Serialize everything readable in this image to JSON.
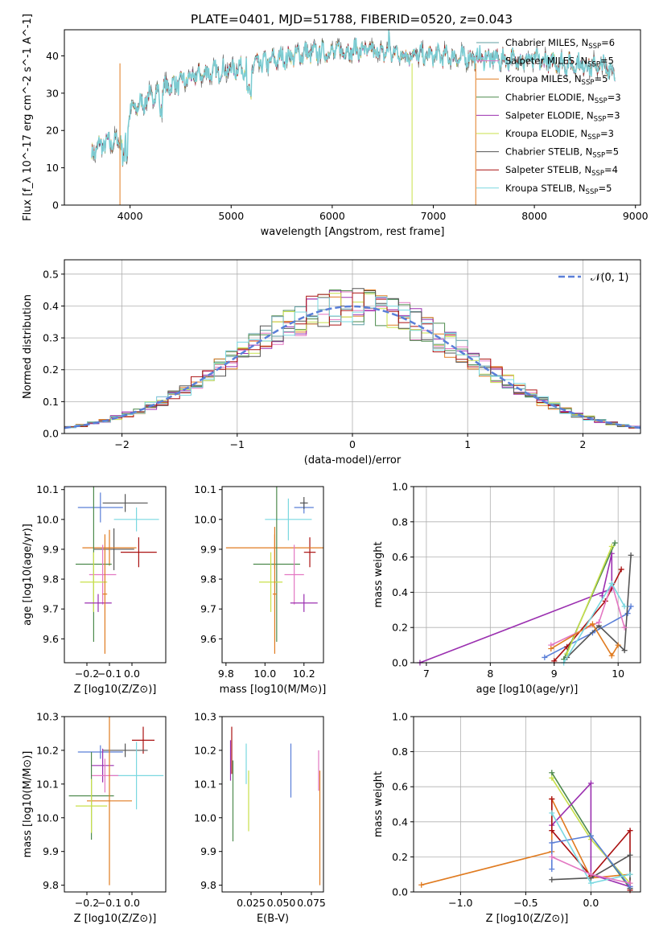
{
  "figure": {
    "title": "PLATE=0401, MJD=51788, FIBERID=0520, z=0.043"
  },
  "colors": {
    "chabrier_miles": "#5f9ea0",
    "salpeter_miles": "#e377c2",
    "kroupa_miles": "#e07b20",
    "chabrier_elodie": "#4d8a4d",
    "salpeter_elodie": "#9b30b0",
    "kroupa_elodie": "#c8e04a",
    "chabrier_stelib": "#555555",
    "salpeter_stelib": "#aa1111",
    "kroupa_stelib": "#7ad8e0",
    "extra_blue": "#5a7fd8"
  },
  "chart_data": [
    {
      "id": "spectrum",
      "type": "line",
      "title": "PLATE=0401, MJD=51788, FIBERID=0520, z=0.043",
      "xlabel": "wavelength [Angstrom, rest frame]",
      "ylabel": "Flux [f_λ 10^-17 erg cm^-2 s^-1 A^-1]",
      "xlim": [
        3350,
        9050
      ],
      "ylim": [
        0,
        47
      ],
      "xticks": [
        4000,
        5000,
        6000,
        7000,
        8000,
        9000
      ],
      "yticks": [
        0,
        10,
        20,
        30,
        40
      ],
      "legend_placement": "right",
      "legend": [
        {
          "label": "Chabrier MILES, N_SSP=6",
          "color": "#5f9ea0"
        },
        {
          "label": "Salpeter MILES, N_SSP=5",
          "color": "#e377c2"
        },
        {
          "label": "Kroupa MILES, N_SSP=5",
          "color": "#e07b20"
        },
        {
          "label": "Chabrier ELODIE, N_SSP=3",
          "color": "#4d8a4d"
        },
        {
          "label": "Salpeter ELODIE, N_SSP=3",
          "color": "#9b30b0"
        },
        {
          "label": "Kroupa ELODIE, N_SSP=3",
          "color": "#c8e04a"
        },
        {
          "label": "Chabrier STELIB, N_SSP=5",
          "color": "#555555"
        },
        {
          "label": "Salpeter STELIB, N_SSP=4",
          "color": "#aa1111"
        },
        {
          "label": "Kroupa STELIB, N_SSP=5",
          "color": "#7ad8e0"
        }
      ],
      "continuum": {
        "x": [
          3600,
          3700,
          3850,
          3950,
          4000,
          4100,
          4300,
          4500,
          4700,
          4900,
          5100,
          5300,
          5500,
          5700,
          5900,
          6100,
          6300,
          6500,
          6700,
          6900,
          7100,
          7300,
          7500,
          7700,
          7900,
          8100,
          8300,
          8500,
          8700,
          8800
        ],
        "y": [
          13,
          16,
          17,
          18,
          25,
          27,
          31,
          33,
          35,
          36,
          37,
          38,
          39.5,
          40.5,
          41,
          41.5,
          41.5,
          41,
          40.5,
          40,
          40,
          39.5,
          39.5,
          39,
          39,
          38.5,
          38,
          37.5,
          37,
          36.5
        ]
      },
      "drops": [
        {
          "x": 3900,
          "to": 0,
          "color": "#e07b20"
        },
        {
          "x": 6790,
          "to": 0,
          "color": "#c8e04a"
        },
        {
          "x": 7420,
          "to": 0,
          "color": "#e07b20"
        }
      ]
    },
    {
      "id": "residuals",
      "type": "line",
      "xlabel": "(data-model)/error",
      "ylabel": "Normed distribution",
      "xlim": [
        -2.5,
        2.5
      ],
      "ylim": [
        0,
        0.545
      ],
      "xticks": [
        -2,
        -1,
        0,
        1,
        2
      ],
      "yticks": [
        0.0,
        0.1,
        0.2,
        0.3,
        0.4,
        0.5
      ],
      "grid": true,
      "legend_placement": "top-right",
      "legend": [
        {
          "label": "𝒩(0, 1)",
          "color": "#5a7fd8"
        }
      ],
      "bin_width": 0.1
    },
    {
      "id": "age_vs_Z",
      "type": "scatter",
      "xlabel": "Z [log10(Z/Z⊙)]",
      "ylabel": "age [log10(age/yr)]",
      "xlim": [
        -0.3,
        0.15
      ],
      "ylim": [
        9.52,
        10.11
      ],
      "xticks": [
        -0.2,
        -0.1,
        0.0
      ],
      "yticks": [
        9.6,
        9.7,
        9.8,
        9.9,
        10.0,
        10.1
      ],
      "points": [
        {
          "x": -0.14,
          "y": 10.04,
          "xerr": 0.1,
          "yerr": 0.05,
          "color": "#5a7fd8"
        },
        {
          "x": -0.03,
          "y": 10.055,
          "xerr": 0.1,
          "yerr": 0.03,
          "color": "#555555"
        },
        {
          "x": 0.02,
          "y": 10.0,
          "xerr": 0.1,
          "yerr": 0.04,
          "color": "#7ad8e0"
        },
        {
          "x": -0.08,
          "y": 9.9,
          "xerr": 0.09,
          "yerr": 0.07,
          "color": "#555555"
        },
        {
          "x": 0.03,
          "y": 9.89,
          "xerr": 0.08,
          "yerr": 0.05,
          "color": "#aa1111"
        },
        {
          "x": -0.1,
          "y": 9.905,
          "xerr": 0.12,
          "yerr": 0.06,
          "color": "#e07b20"
        },
        {
          "x": -0.17,
          "y": 9.85,
          "xerr": 0.08,
          "yerr": 0.26,
          "color": "#4d8a4d"
        },
        {
          "x": -0.13,
          "y": 9.815,
          "xerr": 0.06,
          "yerr": 0.1,
          "color": "#e377c2"
        },
        {
          "x": -0.17,
          "y": 9.79,
          "xerr": 0.06,
          "yerr": 0.1,
          "color": "#c8e04a"
        },
        {
          "x": -0.15,
          "y": 9.72,
          "xerr": 0.06,
          "yerr": 0.03,
          "color": "#9b30b0"
        },
        {
          "x": -0.12,
          "y": 9.75,
          "xerr": 0.01,
          "yerr": 0.2,
          "color": "#e07b20"
        }
      ]
    },
    {
      "id": "age_vs_mass",
      "type": "scatter",
      "xlabel": "mass [log10(M/M⊙)]",
      "ylabel": "",
      "xlim": [
        9.78,
        10.3
      ],
      "ylim": [
        9.52,
        10.11
      ],
      "xticks": [
        9.8,
        10.0,
        10.2
      ],
      "yticks": [
        9.6,
        9.7,
        9.8,
        9.9,
        10.0,
        10.1
      ],
      "points": [
        {
          "x": 10.2,
          "y": 10.04,
          "xerr": 0.05,
          "yerr": 0.02,
          "color": "#5a7fd8"
        },
        {
          "x": 10.2,
          "y": 10.055,
          "xerr": 0.02,
          "yerr": 0.02,
          "color": "#555555"
        },
        {
          "x": 10.12,
          "y": 10.0,
          "xerr": 0.12,
          "yerr": 0.07,
          "color": "#7ad8e0"
        },
        {
          "x": 10.23,
          "y": 9.89,
          "xerr": 0.03,
          "yerr": 0.05,
          "color": "#aa1111"
        },
        {
          "x": 10.05,
          "y": 9.905,
          "xerr": 0.25,
          "yerr": 0.07,
          "color": "#e07b20"
        },
        {
          "x": 10.06,
          "y": 9.85,
          "xerr": 0.12,
          "yerr": 0.26,
          "color": "#4d8a4d"
        },
        {
          "x": 10.15,
          "y": 9.815,
          "xerr": 0.05,
          "yerr": 0.1,
          "color": "#e377c2"
        },
        {
          "x": 10.03,
          "y": 9.79,
          "xerr": 0.06,
          "yerr": 0.1,
          "color": "#c8e04a"
        },
        {
          "x": 10.2,
          "y": 9.72,
          "xerr": 0.07,
          "yerr": 0.03,
          "color": "#9b30b0"
        },
        {
          "x": 10.05,
          "y": 9.75,
          "xerr": 0.01,
          "yerr": 0.2,
          "color": "#e07b20"
        }
      ]
    },
    {
      "id": "mass_weight_vs_age",
      "type": "line",
      "xlabel": "age [log10(age/yr)]",
      "ylabel": "mass weight",
      "xlim": [
        6.8,
        10.35
      ],
      "ylim": [
        0,
        1.0
      ],
      "xticks": [
        7,
        8,
        9,
        10
      ],
      "yticks": [
        0.0,
        0.2,
        0.4,
        0.6,
        0.8,
        1.0
      ],
      "grid": true,
      "series": [
        {
          "color": "#9b30b0",
          "x": [
            6.9,
            9.9,
            9.9,
            9.75
          ],
          "y": [
            0.0,
            0.42,
            0.62,
            0.38
          ]
        },
        {
          "color": "#5a7fd8",
          "x": [
            8.85,
            9.6,
            10.15,
            10.2
          ],
          "y": [
            0.03,
            0.17,
            0.28,
            0.32
          ]
        },
        {
          "color": "#555555",
          "x": [
            9.2,
            9.7,
            10.1,
            10.2
          ],
          "y": [
            0.03,
            0.21,
            0.07,
            0.61
          ]
        },
        {
          "color": "#aa1111",
          "x": [
            9.0,
            9.2,
            9.8,
            10.05
          ],
          "y": [
            0.01,
            0.09,
            0.35,
            0.53
          ]
        },
        {
          "color": "#4d8a4d",
          "x": [
            9.15,
            9.95
          ],
          "y": [
            0.02,
            0.68
          ]
        },
        {
          "color": "#c8e04a",
          "x": [
            9.2,
            9.9
          ],
          "y": [
            0.05,
            0.66
          ]
        },
        {
          "color": "#e377c2",
          "x": [
            8.95,
            9.7,
            9.9,
            10.1
          ],
          "y": [
            0.1,
            0.23,
            0.45,
            0.2
          ]
        },
        {
          "color": "#e07b20",
          "x": [
            8.95,
            9.6,
            9.9,
            10.0
          ],
          "y": [
            0.08,
            0.22,
            0.04,
            0.1
          ]
        },
        {
          "color": "#7ad8e0",
          "x": [
            9.15,
            9.9,
            10.1
          ],
          "y": [
            0.0,
            0.45,
            0.32
          ]
        }
      ]
    },
    {
      "id": "mass_vs_Z",
      "type": "scatter",
      "xlabel": "Z [log10(Z/Z⊙)]",
      "ylabel": "mass [log10(M/M⊙)]",
      "xlim": [
        -0.3,
        0.15
      ],
      "ylim": [
        9.78,
        10.3
      ],
      "xticks": [
        -0.2,
        -0.1,
        0.0
      ],
      "yticks": [
        9.8,
        9.9,
        10.0,
        10.1,
        10.2,
        10.3
      ],
      "points": [
        {
          "x": 0.05,
          "y": 10.23,
          "xerr": 0.05,
          "yerr": 0.04,
          "color": "#aa1111"
        },
        {
          "x": -0.03,
          "y": 10.2,
          "xerr": 0.1,
          "yerr": 0.02,
          "color": "#555555"
        },
        {
          "x": -0.14,
          "y": 10.195,
          "xerr": 0.1,
          "yerr": 0.02,
          "color": "#5a7fd8"
        },
        {
          "x": -0.13,
          "y": 10.155,
          "xerr": 0.05,
          "yerr": 0.05,
          "color": "#9b30b0"
        },
        {
          "x": 0.02,
          "y": 10.125,
          "xerr": 0.12,
          "yerr": 0.1,
          "color": "#7ad8e0"
        },
        {
          "x": -0.12,
          "y": 10.125,
          "xerr": 0.06,
          "yerr": 0.05,
          "color": "#e377c2"
        },
        {
          "x": -0.18,
          "y": 10.065,
          "xerr": 0.1,
          "yerr": 0.13,
          "color": "#4d8a4d"
        },
        {
          "x": -0.1,
          "y": 10.05,
          "xerr": 0.1,
          "yerr": 0.25,
          "color": "#e07b20"
        },
        {
          "x": -0.18,
          "y": 10.035,
          "xerr": 0.07,
          "yerr": 0.08,
          "color": "#c8e04a"
        }
      ]
    },
    {
      "id": "mass_vs_EBV",
      "type": "scatter",
      "xlabel": "E(B-V)",
      "ylabel": "",
      "xlim": [
        0.001,
        0.085
      ],
      "ylim": [
        9.78,
        10.3
      ],
      "xticks": [
        0.025,
        0.05,
        0.075
      ],
      "xticklabels": [
        "0.025",
        "0.050",
        "0.075"
      ],
      "yticks": [
        9.8,
        9.9,
        10.0,
        10.1,
        10.2,
        10.3
      ],
      "points": [
        {
          "x": 0.008,
          "y": 10.17,
          "yerr": 0.06,
          "color": "#9b30b0"
        },
        {
          "x": 0.009,
          "y": 10.2,
          "yerr": 0.07,
          "color": "#aa1111"
        },
        {
          "x": 0.01,
          "y": 10.05,
          "yerr": 0.12,
          "color": "#4d8a4d"
        },
        {
          "x": 0.021,
          "y": 10.16,
          "yerr": 0.06,
          "color": "#7ad8e0"
        },
        {
          "x": 0.023,
          "y": 10.05,
          "yerr": 0.09,
          "color": "#c8e04a"
        },
        {
          "x": 0.058,
          "y": 10.14,
          "yerr": 0.08,
          "color": "#5a7fd8"
        },
        {
          "x": 0.081,
          "y": 10.14,
          "yerr": 0.06,
          "color": "#e377c2"
        },
        {
          "x": 0.082,
          "y": 9.97,
          "yerr": 0.17,
          "color": "#e07b20"
        }
      ]
    },
    {
      "id": "mass_weight_vs_Z",
      "type": "line",
      "xlabel": "Z [log10(Z/Z⊙)]",
      "ylabel": "mass weight",
      "xlim": [
        -1.36,
        0.38
      ],
      "ylim": [
        0,
        1.0
      ],
      "xticks": [
        -1.0,
        -0.5,
        0.0
      ],
      "xticklabels": [
        "−1.0",
        "−0.5",
        "0.0"
      ],
      "yticks": [
        0.0,
        0.2,
        0.4,
        0.6,
        0.8,
        1.0
      ],
      "grid": true,
      "series": [
        {
          "color": "#e07b20",
          "x": [
            -1.3,
            -0.3,
            -0.3,
            0.0,
            0.3
          ],
          "y": [
            0.04,
            0.23,
            0.53,
            0.08,
            0.1
          ]
        },
        {
          "color": "#4d8a4d",
          "x": [
            -0.3,
            0.0,
            0.3
          ],
          "y": [
            0.68,
            0.32,
            0.02
          ]
        },
        {
          "color": "#c8e04a",
          "x": [
            -0.3,
            0.0,
            0.3
          ],
          "y": [
            0.65,
            0.3,
            0.05
          ]
        },
        {
          "color": "#9b30b0",
          "x": [
            -0.3,
            0.0,
            0.0,
            0.3
          ],
          "y": [
            0.38,
            0.62,
            0.1,
            0.03
          ]
        },
        {
          "color": "#aa1111",
          "x": [
            -0.3,
            -0.3,
            0.0,
            0.3,
            0.3
          ],
          "y": [
            0.53,
            0.35,
            0.09,
            0.35,
            0.01
          ]
        },
        {
          "color": "#555555",
          "x": [
            -0.3,
            0.0,
            0.3,
            0.3
          ],
          "y": [
            0.07,
            0.08,
            0.21,
            0.02
          ]
        },
        {
          "color": "#5a7fd8",
          "x": [
            -0.3,
            -0.3,
            0.0,
            0.3
          ],
          "y": [
            0.13,
            0.28,
            0.32,
            0.03
          ]
        },
        {
          "color": "#7ad8e0",
          "x": [
            -0.3,
            0.0,
            0.3
          ],
          "y": [
            0.45,
            0.05,
            0.1
          ]
        },
        {
          "color": "#e377c2",
          "x": [
            -0.3,
            0.0,
            0.3
          ],
          "y": [
            0.2,
            0.1,
            0.05
          ]
        }
      ]
    }
  ]
}
